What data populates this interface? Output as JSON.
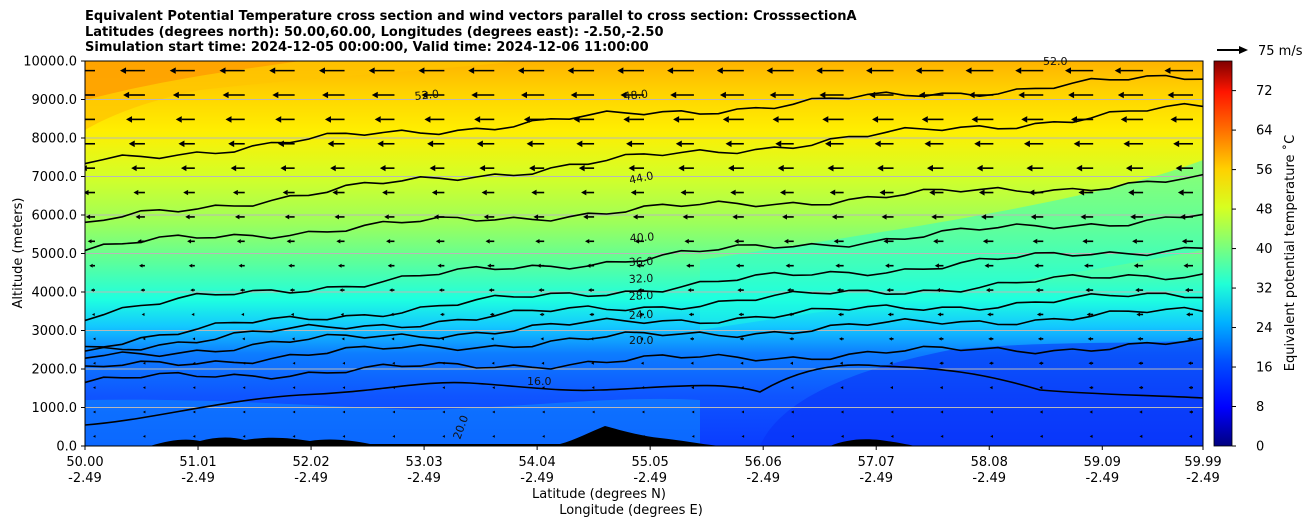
{
  "title": {
    "line1": "Equivalent Potential Temperature cross section and wind vectors parallel to cross section: CrosssectionA",
    "line2": "Latitudes (degrees north): 50.00,60.00, Longitudes (degrees east): -2.50,-2.50",
    "line3": "Simulation start time: 2024-12-05 00:00:00, Valid time: 2024-12-06 11:00:00"
  },
  "chart_data": {
    "type": "contourf",
    "title": "Equivalent Potential Temperature cross section and wind vectors parallel to cross section: CrosssectionA",
    "ylabel": "Altitude (meters)",
    "xlabel": "Latitude (degrees N)",
    "xlabel2": "Longitude (degrees E)",
    "ylim": [
      0,
      10000
    ],
    "xlim": [
      50.0,
      59.99
    ],
    "y_ticks": [
      "0.0",
      "1000.0",
      "2000.0",
      "3000.0",
      "4000.0",
      "5000.0",
      "6000.0",
      "7000.0",
      "8000.0",
      "9000.0",
      "10000.0"
    ],
    "y_tick_values": [
      0,
      1000,
      2000,
      3000,
      4000,
      5000,
      6000,
      7000,
      8000,
      9000,
      10000
    ],
    "x_ticks_lat": [
      "50.00",
      "51.01",
      "52.02",
      "53.03",
      "54.04",
      "55.05",
      "56.06",
      "57.07",
      "58.08",
      "59.09",
      "59.99"
    ],
    "x_ticks_lon": [
      "-2.49",
      "-2.49",
      "-2.49",
      "-2.49",
      "-2.49",
      "-2.49",
      "-2.49",
      "-2.49",
      "-2.49",
      "-2.49",
      "-2.49"
    ],
    "x_tick_values": [
      50.0,
      51.01,
      52.02,
      53.03,
      54.04,
      55.05,
      56.06,
      57.07,
      58.08,
      59.09,
      59.99
    ],
    "grid": "horizontal",
    "colorbar": {
      "label": "Equivalent potential temperature ˚C",
      "ticks": [
        "0",
        "8",
        "16",
        "24",
        "32",
        "40",
        "48",
        "56",
        "64",
        "72"
      ],
      "tick_values": [
        0,
        8,
        16,
        24,
        32,
        40,
        48,
        56,
        64,
        72
      ],
      "range": [
        0,
        78
      ]
    },
    "quiver_key": "75 m/s",
    "contour_labels": [
      "52.0",
      "48.0",
      "44.0",
      "40.0",
      "36.0",
      "32.0",
      "28.0",
      "24.0",
      "20.0",
      "16.0",
      "20.0",
      "52.0"
    ],
    "contours": [
      {
        "value": 20,
        "alt_start": 1650,
        "alt_end": 2650
      },
      {
        "value": 24,
        "alt_start": 1950,
        "alt_end": 3500
      },
      {
        "value": 28,
        "alt_start": 2250,
        "alt_end": 3950
      },
      {
        "value": 32,
        "alt_start": 2450,
        "alt_end": 4500
      },
      {
        "value": 36,
        "alt_start": 2600,
        "alt_end": 5200
      },
      {
        "value": 40,
        "alt_start": 3400,
        "alt_end": 6000
      },
      {
        "value": 44,
        "alt_start": 5100,
        "alt_end": 6900
      },
      {
        "value": 48,
        "alt_start": 5700,
        "alt_end": 8800
      },
      {
        "value": 52,
        "alt_start": 7300,
        "alt_end": 9600
      }
    ],
    "colors": {
      "warm": "#ff9d00",
      "yellow": "#ffea00",
      "green": "#7dff7a",
      "cyan": "#1effe0",
      "blue": "#0055ff",
      "terrain": "#000000"
    }
  }
}
